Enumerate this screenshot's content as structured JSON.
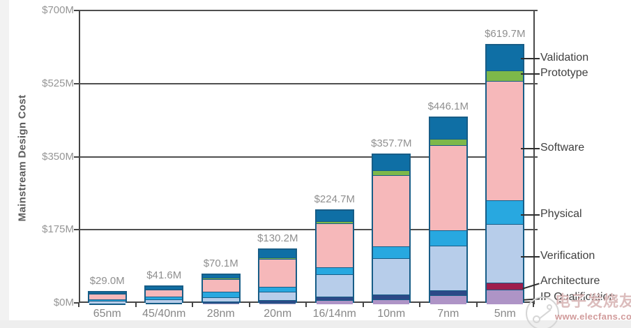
{
  "chart_data": {
    "type": "bar",
    "stacked": true,
    "title": "",
    "ylabel": "Mainstream Design Cost",
    "xlabel": "",
    "unit": "$M",
    "ylim": [
      0,
      700
    ],
    "grid": true,
    "y_ticks": [
      "$700M",
      "$525M",
      "$350M",
      "$175M",
      "$0M"
    ],
    "categories": [
      "65nm",
      "45/40nm",
      "28nm",
      "20nm",
      "16/14nm",
      "10nm",
      "7nm",
      "5nm"
    ],
    "segment_order_bottom_to_top": [
      "ip_qualification",
      "architecture",
      "verification",
      "physical",
      "software",
      "prototype",
      "validation"
    ],
    "segment_colors": {
      "validation": "#0f6fa5",
      "prototype": "#7db84a",
      "software": "#f6b8ba",
      "physical": "#28a8e0",
      "verification": "#b7cdea",
      "architecture": "#2c4987",
      "ip_qualification": "#ae94c6"
    },
    "bar_border_color": "#175d87",
    "bars": [
      {
        "category": "65nm",
        "total": 29.0,
        "total_label": "$29.0M",
        "segments": {
          "ip_qualification": 1.5,
          "architecture": 1.5,
          "verification": 6.0,
          "physical": 4.0,
          "software": 12.0,
          "prototype": 1.0,
          "validation": 3.0
        }
      },
      {
        "category": "45/40nm",
        "total": 41.6,
        "total_label": "$41.6M",
        "segments": {
          "ip_qualification": 2.0,
          "architecture": 2.0,
          "verification": 8.5,
          "physical": 5.6,
          "software": 17.5,
          "prototype": 1.5,
          "validation": 4.5
        }
      },
      {
        "category": "28nm",
        "total": 70.1,
        "total_label": "$70.1M",
        "segments": {
          "ip_qualification": 3.3,
          "architecture": 2.7,
          "verification": 11.1,
          "physical": 12.6,
          "software": 30.7,
          "prototype": 2.6,
          "validation": 7.1
        }
      },
      {
        "category": "20nm",
        "total": 130.2,
        "total_label": "$130.2M",
        "segments": {
          "ip_qualification": 3.5,
          "architecture": 7.0,
          "verification": 20.0,
          "physical": 12.0,
          "software": 66.0,
          "prototype": 4.0,
          "validation": 17.7
        }
      },
      {
        "category": "16/14nm",
        "total": 224.7,
        "total_label": "$224.7M",
        "segments": {
          "ip_qualification": 10.0,
          "architecture": 8.5,
          "verification": 54.0,
          "physical": 15.5,
          "software": 105.0,
          "prototype": 5.2,
          "validation": 26.5
        }
      },
      {
        "category": "10nm",
        "total": 357.7,
        "total_label": "$357.7M",
        "segments": {
          "ip_qualification": 12.0,
          "architecture": 12.0,
          "verification": 86.0,
          "physical": 28.0,
          "software": 170.7,
          "prototype": 12.0,
          "validation": 37.0
        }
      },
      {
        "category": "7nm",
        "total": 446.1,
        "total_label": "$446.1M",
        "segments": {
          "ip_qualification": 22.0,
          "architecture": 12.1,
          "verification": 106.0,
          "physical": 37.0,
          "software": 204.0,
          "prototype": 15.0,
          "validation": 50.0
        }
      },
      {
        "category": "5nm",
        "total": 619.7,
        "total_label": "$619.7M",
        "color_overrides": {
          "architecture": "#9e1e4d"
        },
        "segments": {
          "ip_qualification": 35.0,
          "architecture": 16.7,
          "verification": 140.0,
          "physical": 58.0,
          "software": 285.0,
          "prototype": 25.0,
          "validation": 60.0
        }
      }
    ],
    "legend": {
      "position": "right",
      "items": [
        "Validation",
        "Prototype",
        "Software",
        "Physical",
        "Verification",
        "Architecture",
        "IP Qualification"
      ]
    }
  },
  "watermark": {
    "brand": "电子发烧友",
    "site": "www.elecfans.com"
  }
}
